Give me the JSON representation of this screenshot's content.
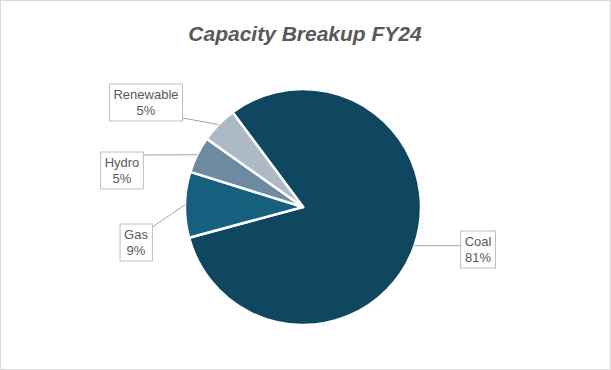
{
  "chart_data": {
    "type": "pie",
    "title": "Capacity Breakup FY24",
    "categories": [
      "Coal",
      "Gas",
      "Hydro",
      "Renewable"
    ],
    "values": [
      81,
      9,
      5,
      5
    ],
    "value_labels": [
      "81%",
      "9%",
      "5%",
      "5%"
    ],
    "colors": [
      "#0f4761",
      "#155f7f",
      "#6c8aa0",
      "#adb9c6"
    ],
    "data_labels": true
  }
}
